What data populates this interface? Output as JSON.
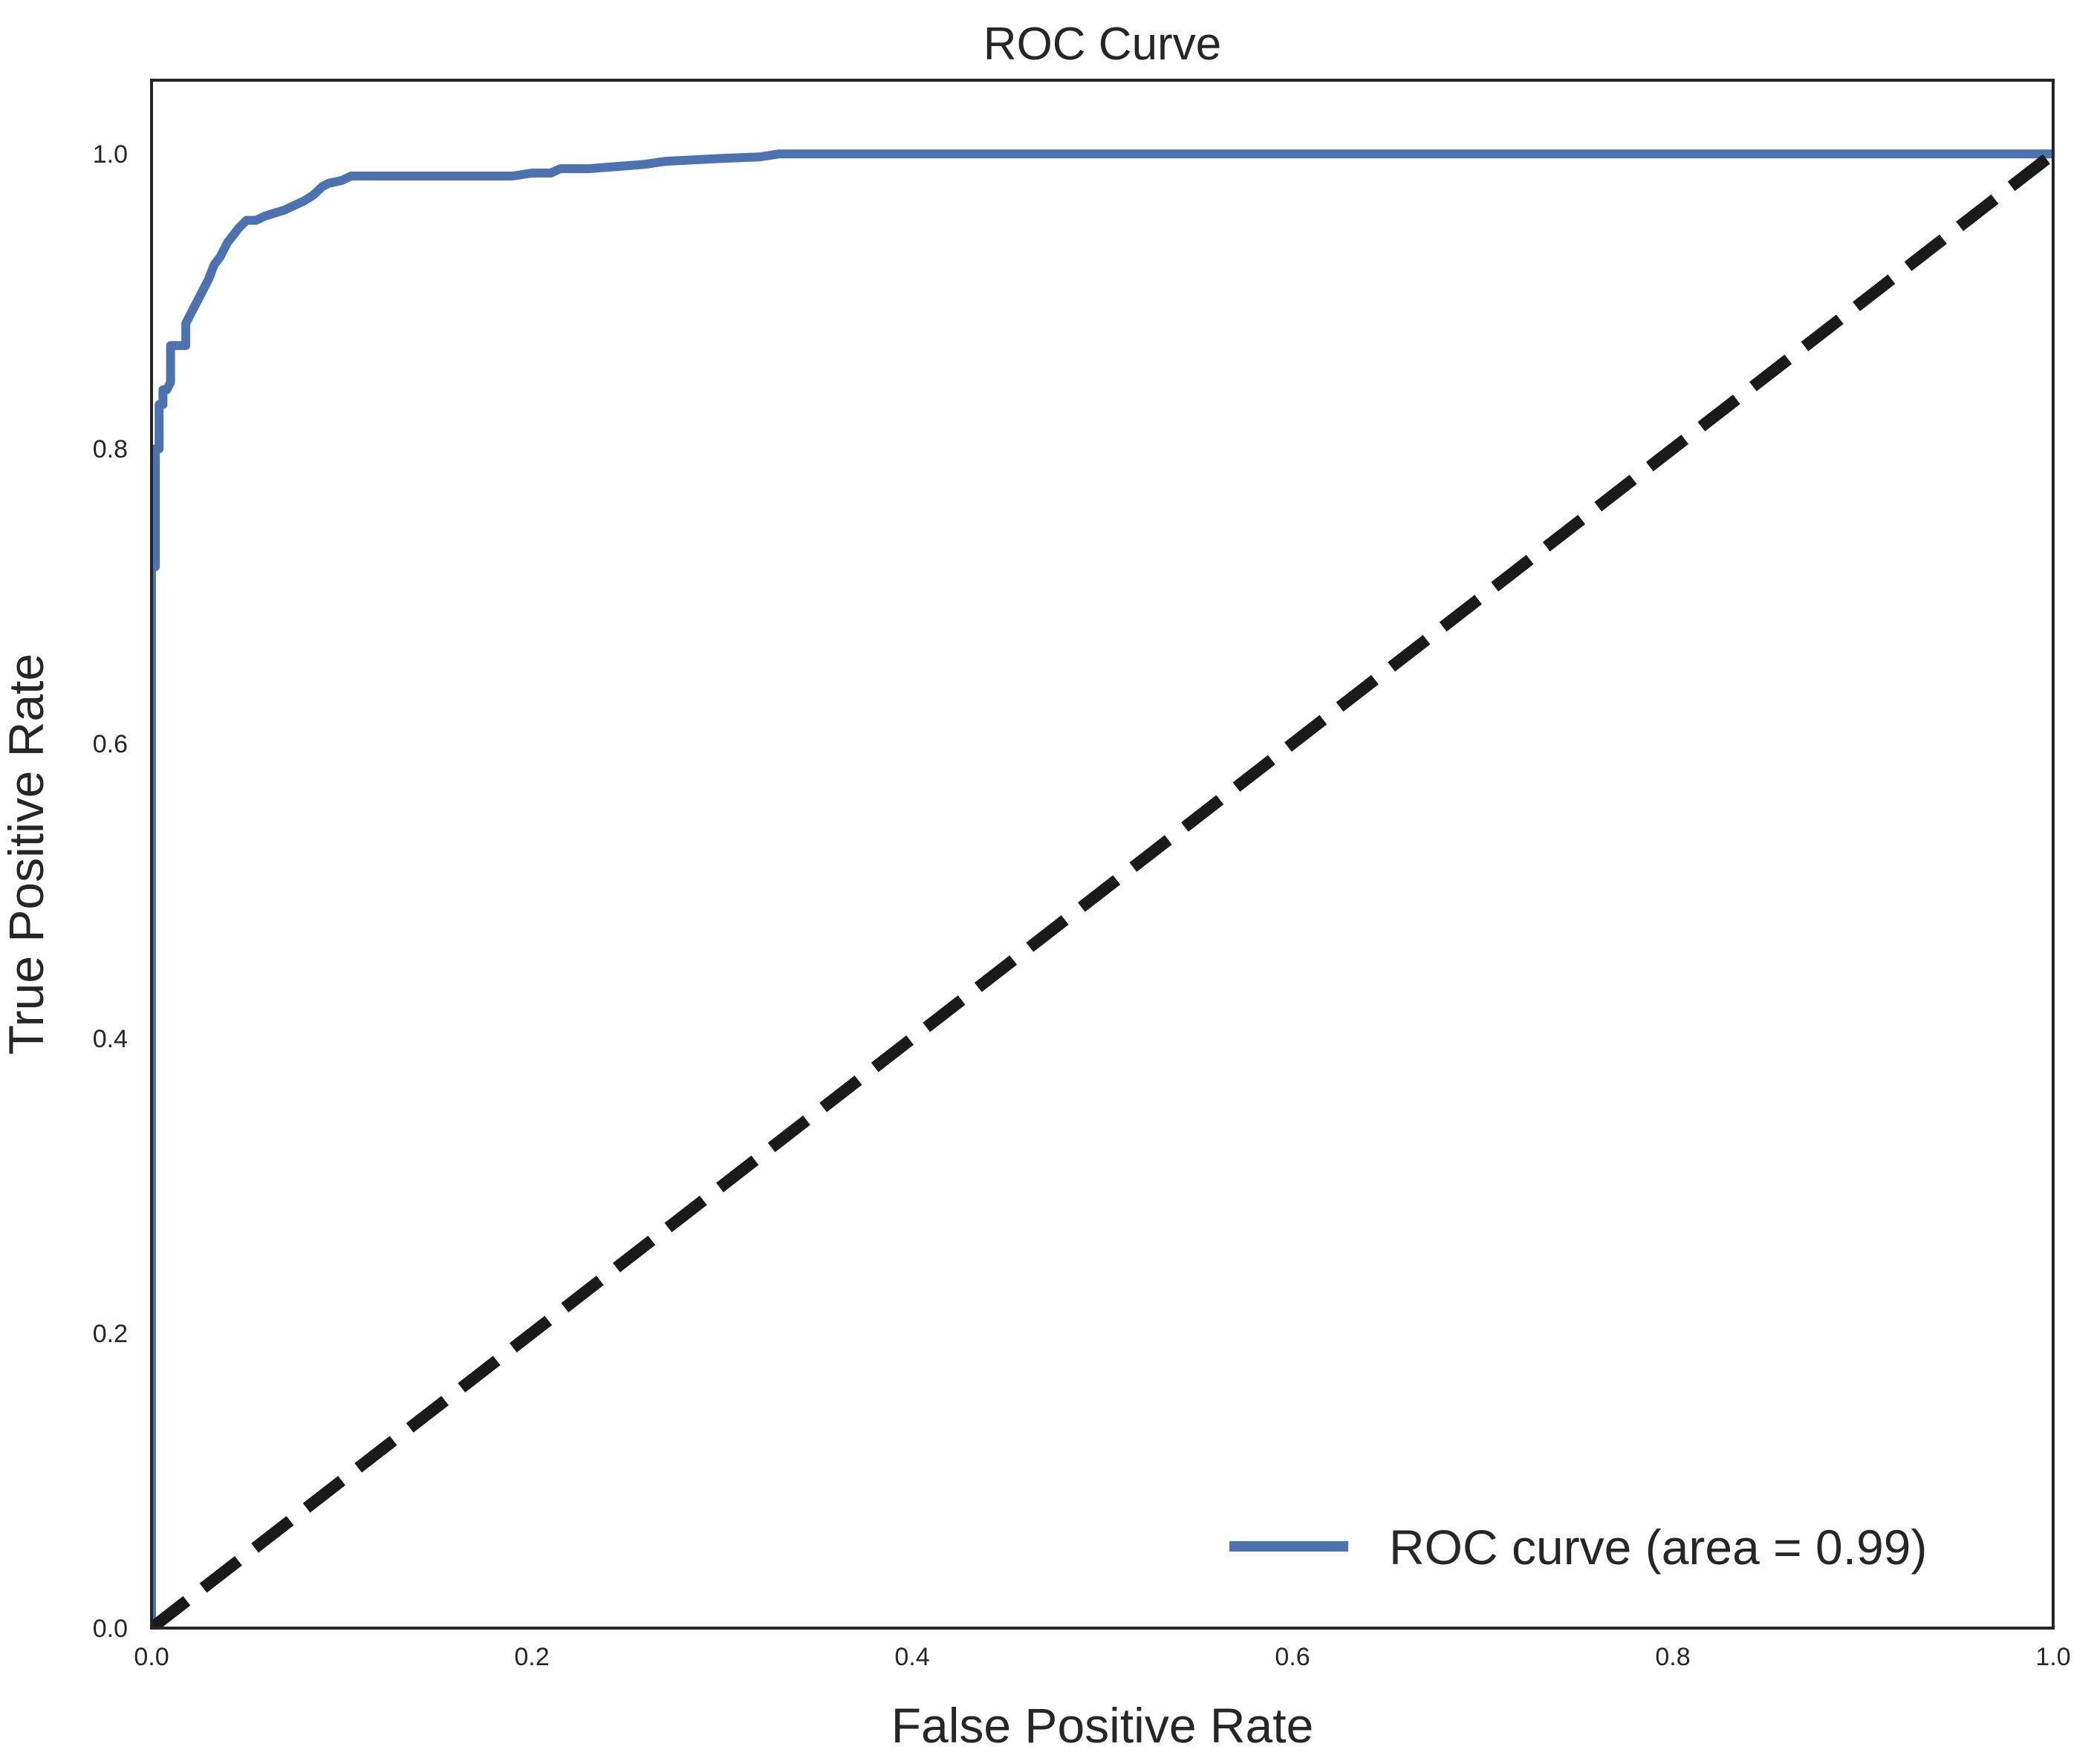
{
  "chart_data": {
    "type": "line",
    "title": "ROC Curve",
    "xlabel": "False Positive Rate",
    "ylabel": "True Positive Rate",
    "xlim": [
      0.0,
      1.0
    ],
    "ylim": [
      0.0,
      1.05
    ],
    "x_ticks": [
      "0.0",
      "0.2",
      "0.4",
      "0.6",
      "0.8",
      "1.0"
    ],
    "y_ticks": [
      "0.0",
      "0.2",
      "0.4",
      "0.6",
      "0.8",
      "1.0"
    ],
    "grid": false,
    "legend_position": "bottom-right",
    "series": [
      {
        "name": "ROC curve (area = 0.99)",
        "color": "#4c72b0",
        "style": "solid",
        "x": [
          0.0,
          0.0,
          0.002,
          0.002,
          0.004,
          0.004,
          0.006,
          0.006,
          0.008,
          0.01,
          0.01,
          0.018,
          0.018,
          0.022,
          0.026,
          0.03,
          0.033,
          0.036,
          0.04,
          0.043,
          0.046,
          0.05,
          0.055,
          0.06,
          0.065,
          0.07,
          0.075,
          0.08,
          0.085,
          0.09,
          0.093,
          0.1,
          0.105,
          0.12,
          0.15,
          0.19,
          0.2,
          0.21,
          0.215,
          0.23,
          0.26,
          0.27,
          0.3,
          0.32,
          0.33,
          0.4,
          0.6,
          0.8,
          1.0
        ],
        "y": [
          0.0,
          0.72,
          0.72,
          0.8,
          0.8,
          0.83,
          0.83,
          0.84,
          0.84,
          0.845,
          0.87,
          0.87,
          0.885,
          0.895,
          0.905,
          0.915,
          0.925,
          0.93,
          0.94,
          0.945,
          0.95,
          0.955,
          0.955,
          0.958,
          0.96,
          0.962,
          0.965,
          0.968,
          0.972,
          0.978,
          0.98,
          0.982,
          0.985,
          0.985,
          0.985,
          0.985,
          0.987,
          0.987,
          0.99,
          0.99,
          0.993,
          0.995,
          0.997,
          0.998,
          1.0,
          1.0,
          1.0,
          1.0,
          1.0
        ]
      },
      {
        "name": "",
        "color": "#1a1a1a",
        "style": "dashed",
        "x": [
          0.0,
          1.0
        ],
        "y": [
          0.0,
          1.0
        ]
      }
    ]
  }
}
